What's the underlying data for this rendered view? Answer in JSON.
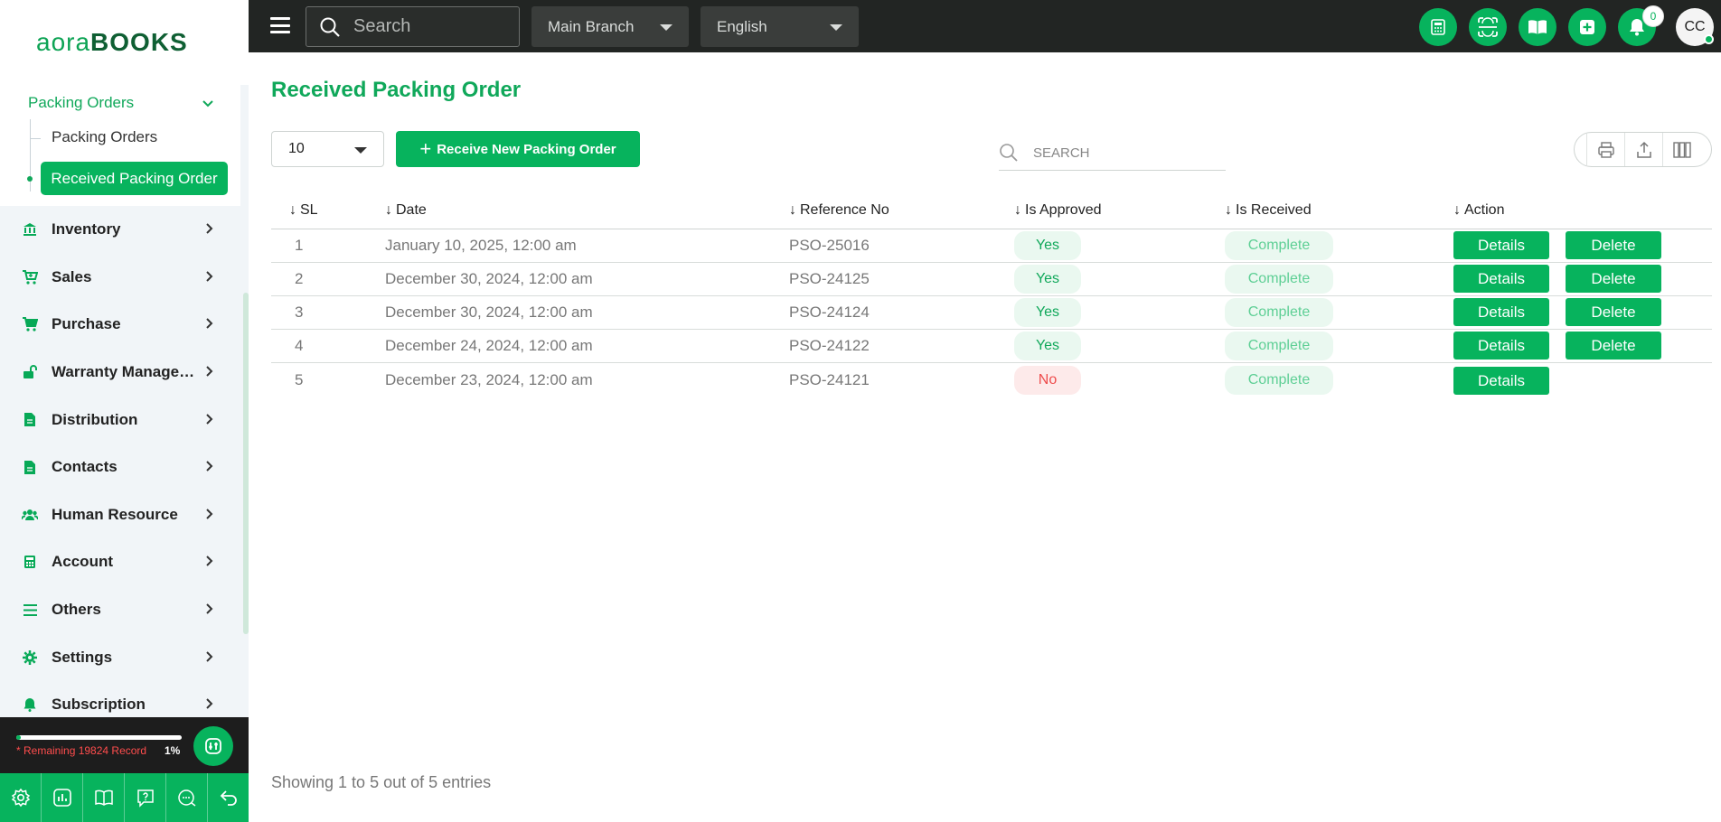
{
  "app": {
    "logo_light": "aora",
    "logo_bold": "BOOKS"
  },
  "sidebar": {
    "group": {
      "label": "Packing Orders"
    },
    "sub_items": [
      {
        "label": "Packing Orders"
      },
      {
        "label": "Received Packing Order"
      }
    ],
    "items": [
      {
        "label": "Inventory",
        "icon": "bank-icon"
      },
      {
        "label": "Sales",
        "icon": "cart-icon"
      },
      {
        "label": "Purchase",
        "icon": "cart-icon"
      },
      {
        "label": "Warranty Management",
        "icon": "lock-open-icon"
      },
      {
        "label": "Distribution",
        "icon": "document-icon"
      },
      {
        "label": "Contacts",
        "icon": "document-icon"
      },
      {
        "label": "Human Resource",
        "icon": "users-icon"
      },
      {
        "label": "Account",
        "icon": "calculator-icon"
      },
      {
        "label": "Others",
        "icon": "list-icon"
      },
      {
        "label": "Settings",
        "icon": "gear-icon"
      },
      {
        "label": "Subscription",
        "icon": "bell-icon"
      }
    ],
    "records": {
      "text": "* Remaining 19824 Record",
      "percent": "1%",
      "progress": 0.01
    },
    "bottom_icons": [
      "settings-icon",
      "chart-icon",
      "book-icon",
      "help-icon",
      "chat-icon",
      "back-icon"
    ]
  },
  "topbar": {
    "search_placeholder": "Search",
    "branch": "Main Branch",
    "language": "English",
    "notification_count": "0",
    "avatar_initials": "CC"
  },
  "page": {
    "title": "Received Packing Order",
    "page_size": "10",
    "new_button": "Receive New Packing Order",
    "search_placeholder": "SEARCH",
    "footer": "Showing 1 to 5 out of 5 entries"
  },
  "table": {
    "headers": [
      "SL",
      "Date",
      "Reference No",
      "Is Approved",
      "Is Received",
      "Action"
    ],
    "details_label": "Details",
    "delete_label": "Delete",
    "rows": [
      {
        "sl": "1",
        "date": "January 10, 2025, 12:00 am",
        "ref": "PSO-25016",
        "approved": "Yes",
        "received": "Complete",
        "can_delete": true
      },
      {
        "sl": "2",
        "date": "December 30, 2024, 12:00 am",
        "ref": "PSO-24125",
        "approved": "Yes",
        "received": "Complete",
        "can_delete": true
      },
      {
        "sl": "3",
        "date": "December 30, 2024, 12:00 am",
        "ref": "PSO-24124",
        "approved": "Yes",
        "received": "Complete",
        "can_delete": true
      },
      {
        "sl": "4",
        "date": "December 24, 2024, 12:00 am",
        "ref": "PSO-24122",
        "approved": "Yes",
        "received": "Complete",
        "can_delete": true
      },
      {
        "sl": "5",
        "date": "December 23, 2024, 12:00 am",
        "ref": "PSO-24121",
        "approved": "No",
        "received": "Complete",
        "can_delete": false
      }
    ]
  },
  "colors": {
    "brand": "#07b35d",
    "topbar": "#222523",
    "danger": "#ee4d4d"
  }
}
